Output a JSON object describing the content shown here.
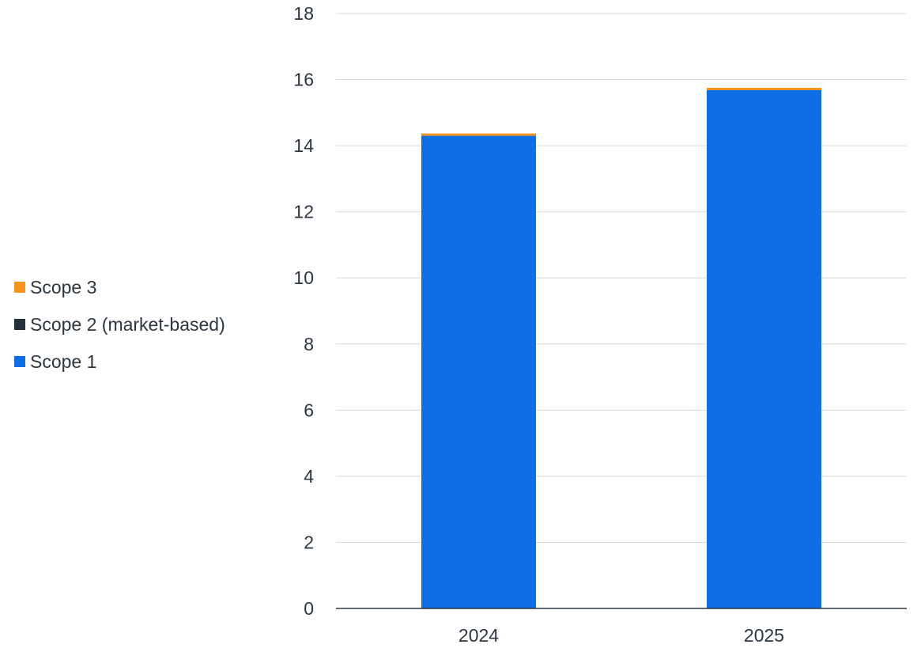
{
  "chart_data": {
    "type": "bar",
    "stacked": true,
    "categories": [
      "2024",
      "2025"
    ],
    "series": [
      {
        "name": "Scope 1",
        "color": "#0d6fe3",
        "values": [
          14.3,
          15.68
        ]
      },
      {
        "name": "Scope 2 (market-based)",
        "color": "#222f38",
        "values": [
          0.0,
          0.0
        ]
      },
      {
        "name": "Scope 3",
        "color": "#f7941d",
        "values": [
          0.07,
          0.07
        ]
      }
    ],
    "legend_order": [
      "Scope 3",
      "Scope 2 (market-based)",
      "Scope 1"
    ],
    "y_ticks": [
      "0",
      "2",
      "4",
      "6",
      "8",
      "10",
      "12",
      "14",
      "16",
      "18"
    ],
    "ylim": [
      0,
      18
    ],
    "grid": true,
    "legend_position": "left"
  }
}
